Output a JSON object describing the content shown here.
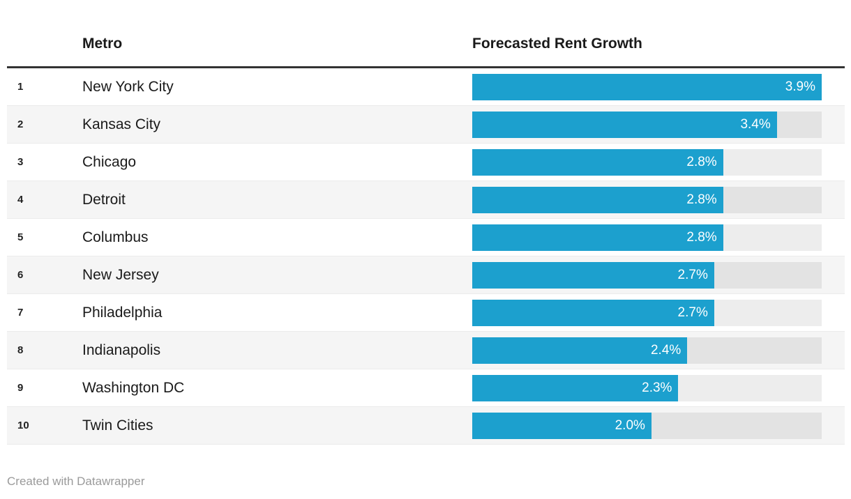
{
  "header": {
    "rank": "",
    "metro": "Metro",
    "value": "Forecasted Rent Growth"
  },
  "footer": {
    "credit": "Created with Datawrapper"
  },
  "colors": {
    "bar_fill": "#1ca0ce",
    "bar_track": "rgba(0,0,0,0.07)",
    "row_stripe": "#f5f5f5",
    "header_rule": "#333333",
    "text_primary": "#1a1a1a",
    "bar_label_text": "#ffffff",
    "credit_text": "#9a9a9a"
  },
  "chart_data": {
    "type": "bar",
    "orientation": "horizontal",
    "title": "",
    "xlabel": "",
    "ylabel": "",
    "column_headers": [
      "Metro",
      "Forecasted Rent Growth"
    ],
    "xlim": [
      0,
      3.9
    ],
    "grid": false,
    "legend": false,
    "categories": [
      "New York City",
      "Kansas City",
      "Chicago",
      "Detroit",
      "Columbus",
      "New Jersey",
      "Philadelphia",
      "Indianapolis",
      "Washington DC",
      "Twin Cities"
    ],
    "values": [
      3.9,
      3.4,
      2.8,
      2.8,
      2.8,
      2.7,
      2.7,
      2.4,
      2.3,
      2.0
    ],
    "rows": [
      {
        "rank": "1",
        "metro": "New York City",
        "value": 3.9,
        "label": "3.9%"
      },
      {
        "rank": "2",
        "metro": "Kansas City",
        "value": 3.4,
        "label": "3.4%"
      },
      {
        "rank": "3",
        "metro": "Chicago",
        "value": 2.8,
        "label": "2.8%"
      },
      {
        "rank": "4",
        "metro": "Detroit",
        "value": 2.8,
        "label": "2.8%"
      },
      {
        "rank": "5",
        "metro": "Columbus",
        "value": 2.8,
        "label": "2.8%"
      },
      {
        "rank": "6",
        "metro": "New Jersey",
        "value": 2.7,
        "label": "2.7%"
      },
      {
        "rank": "7",
        "metro": "Philadelphia",
        "value": 2.7,
        "label": "2.7%"
      },
      {
        "rank": "8",
        "metro": "Indianapolis",
        "value": 2.4,
        "label": "2.4%"
      },
      {
        "rank": "9",
        "metro": "Washington DC",
        "value": 2.3,
        "label": "2.3%"
      },
      {
        "rank": "10",
        "metro": "Twin Cities",
        "value": 2.0,
        "label": "2.0%"
      }
    ]
  }
}
